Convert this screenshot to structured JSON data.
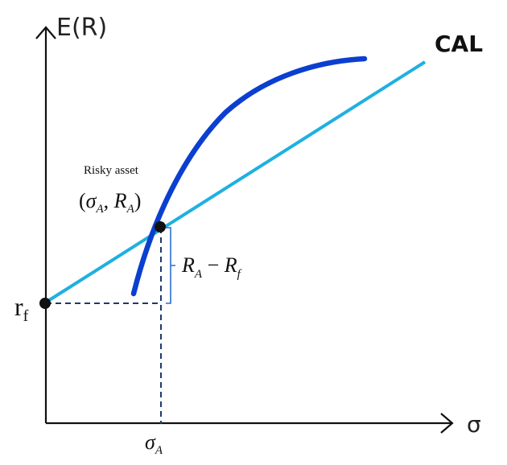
{
  "axes": {
    "y_label": "E(R)",
    "x_label": "σ"
  },
  "lines": {
    "cal_label": "CAL"
  },
  "points": {
    "risky_asset_caption": "Risky asset",
    "risky_asset_coords": {
      "open": "(",
      "sigma": "σ",
      "sigma_sub": "A",
      "comma": ", ",
      "r": "R",
      "r_sub": "A",
      "close": ")"
    },
    "risk_free_label": {
      "base": "r",
      "sub": "f"
    }
  },
  "brackets": {
    "premium_label": {
      "r1": "R",
      "r1_sub": "A",
      "minus": " − ",
      "r2": "R",
      "r2_sub": "f"
    }
  },
  "ticks": {
    "sigma_a": {
      "base": "σ",
      "sub": "A"
    }
  },
  "colors": {
    "cal_line": "#1fb0e0",
    "frontier_curve": "#0a3fd0",
    "axis": "#111111",
    "dashed": "#1c3a70",
    "bracket": "#2a6fd0"
  }
}
